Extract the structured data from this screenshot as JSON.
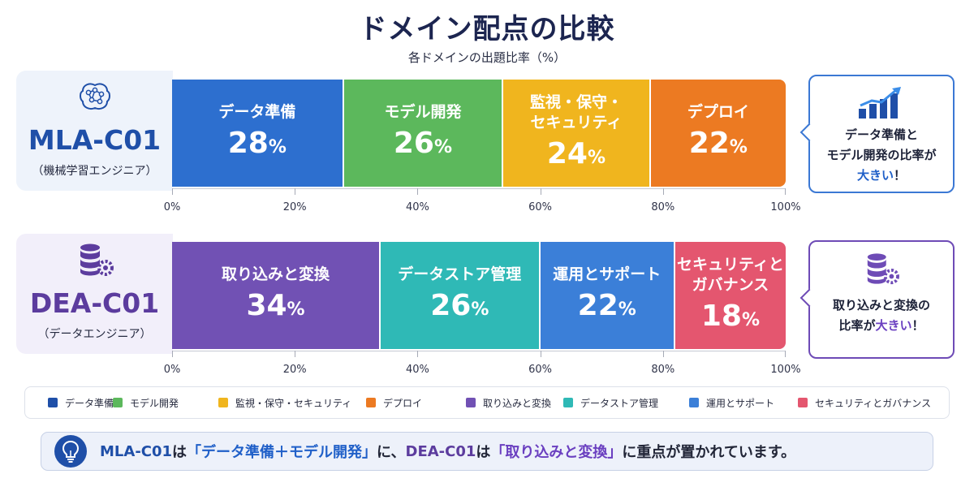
{
  "title": "ドメイン配点の比較",
  "subtitle": "各ドメインの出題比率（%）",
  "chart_data": {
    "type": "bar",
    "orientation": "horizontal-stacked-100",
    "xlim": [
      0,
      100
    ],
    "ticks": [
      "0%",
      "20%",
      "40%",
      "60%",
      "80%",
      "100%"
    ],
    "bars": [
      {
        "code": "MLA-C01",
        "role": "（機械学習エンジニア）",
        "segments": [
          {
            "label": "データ準備",
            "value": 28,
            "color": "#2d6fcf"
          },
          {
            "label": "モデル開発",
            "value": 26,
            "color": "#5cb85c"
          },
          {
            "label": "監視・保守・\nセキュリティ",
            "value": 24,
            "color": "#f0b51e"
          },
          {
            "label": "デプロイ",
            "value": 22,
            "color": "#ec7a22"
          }
        ]
      },
      {
        "code": "DEA-C01",
        "role": "（データエンジニア）",
        "segments": [
          {
            "label": "取り込みと変換",
            "value": 34,
            "color": "#7151b4"
          },
          {
            "label": "データストア管理",
            "value": 26,
            "color": "#2fb9b6"
          },
          {
            "label": "運用とサポート",
            "value": 22,
            "color": "#3b7fd8"
          },
          {
            "label": "セキュリティと\nガバナンス",
            "value": 18,
            "color": "#e4566f"
          }
        ]
      }
    ],
    "legend": [
      {
        "label": "データ準備",
        "color": "#1f4fa8"
      },
      {
        "label": "モデル開発",
        "color": "#5cb85c"
      },
      {
        "label": "監視・保守・セキュリティ",
        "color": "#f0b51e"
      },
      {
        "label": "デプロイ",
        "color": "#ec7a22"
      },
      {
        "label": "取り込みと変換",
        "color": "#7151b4"
      },
      {
        "label": "データストア管理",
        "color": "#2fb9b6"
      },
      {
        "label": "運用とサポート",
        "color": "#3b7fd8"
      },
      {
        "label": "セキュリティとガバナンス",
        "color": "#e4566f"
      }
    ]
  },
  "callouts": {
    "mla": {
      "line1": "データ準備と",
      "line2a": "モデル開発の比率が",
      "line3em": "大きい",
      "line3end": "！"
    },
    "dea": {
      "line1": "取り込みと変換の",
      "line2a": "比率が",
      "line2em": "大きい",
      "line2end": "！"
    }
  },
  "footer": {
    "mla": "MLA-C01",
    "t1": "は",
    "q1": "「データ準備＋モデル開発」",
    "t2": "に、",
    "dea": "DEA-C01",
    "t3": "は",
    "q2": "「取り込みと変換」",
    "t4": "に重点が置かれています。"
  }
}
